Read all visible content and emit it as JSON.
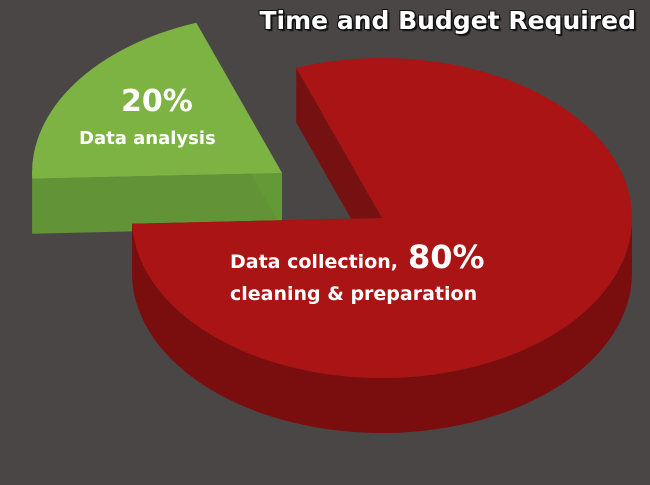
{
  "chart_data": {
    "type": "pie",
    "title": "Time and Budget Required",
    "slices": [
      {
        "label_line1": "Data collection,",
        "label_line2": "cleaning & preparation",
        "value": 80,
        "value_label": "80%",
        "color": "#aa1414",
        "side_color": "#7a0d0d",
        "exploded": false
      },
      {
        "label_line1": "Data analysis",
        "value": 20,
        "value_label": "20%",
        "color": "#7db342",
        "side_color": "#649a35",
        "exploded": true
      }
    ],
    "style": "3d-exploded"
  },
  "colors": {
    "background": "#4a4646",
    "title_text": "#ffffff"
  }
}
